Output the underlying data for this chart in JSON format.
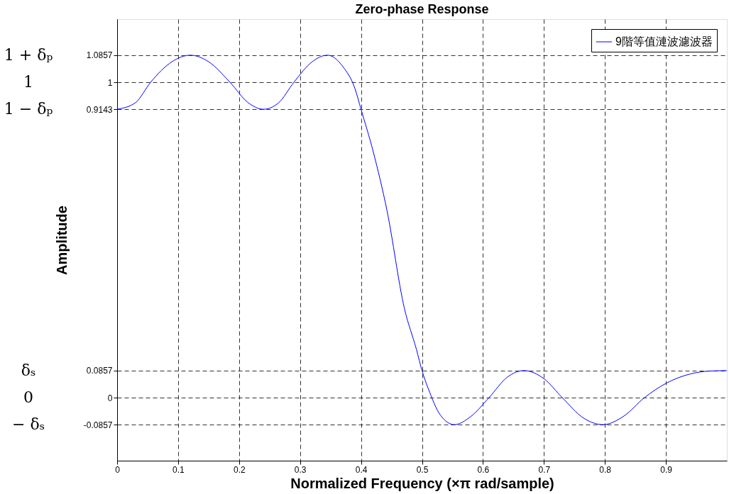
{
  "chart_data": {
    "type": "line",
    "title": "Zero-phase Response",
    "xlabel": "Normalized Frequency (×π rad/sample)",
    "ylabel": "Amplitude",
    "x": [
      0,
      0.03,
      0.055,
      0.09,
      0.12,
      0.15,
      0.185,
      0.215,
      0.24,
      0.265,
      0.29,
      0.32,
      0.345,
      0.37,
      0.39,
      0.4,
      0.42,
      0.4425,
      0.471,
      0.491,
      0.5,
      0.51,
      0.53,
      0.553,
      0.58,
      0.61,
      0.64,
      0.667,
      0.7,
      0.73,
      0.765,
      0.797,
      0.83,
      0.865,
      0.9,
      0.94,
      0.97,
      1.0
    ],
    "series": [
      {
        "name": "9階等值漣波濾波器",
        "color": "#0000ff",
        "values": [
          0.9143,
          0.935,
          1.0,
          1.065,
          1.0857,
          1.065,
          1.0,
          0.935,
          0.9143,
          0.935,
          1.0,
          1.065,
          1.0857,
          1.05,
          0.98,
          0.9143,
          0.78,
          0.594,
          0.284,
          0.152,
          0.0857,
          0.03,
          -0.055,
          -0.0857,
          -0.06,
          0,
          0.065,
          0.0857,
          0.06,
          0,
          -0.065,
          -0.0857,
          -0.06,
          0,
          0.045,
          0.075,
          0.084,
          0.0857
        ]
      }
    ],
    "xlim": [
      0,
      1
    ],
    "ylim": [
      -0.2,
      1.2
    ],
    "xticks": [
      0,
      0.1,
      0.2,
      0.3,
      0.4,
      0.5,
      0.6,
      0.7,
      0.8,
      0.9
    ],
    "yticks": [
      -0.0857,
      0,
      0.0857,
      0.9143,
      1,
      1.0857
    ],
    "annotations": [
      "1 + δₚ",
      "1",
      "1 − δₚ",
      "δₛ",
      "0",
      "− δₛ"
    ],
    "grid": true,
    "legend": "top right",
    "line_style": "solid",
    "marker": "none"
  }
}
